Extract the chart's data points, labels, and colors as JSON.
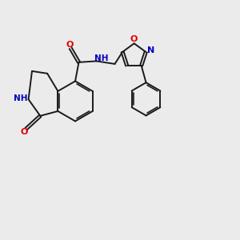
{
  "bg_color": "#ebebeb",
  "bond_color": "#1a1a1a",
  "O_color": "#dd0000",
  "N_color": "#0000bb",
  "lw": 1.4,
  "xlim": [
    0,
    10
  ],
  "ylim": [
    0,
    10
  ]
}
